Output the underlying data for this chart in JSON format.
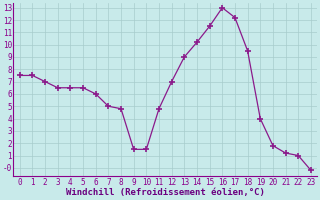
{
  "x": [
    0,
    1,
    2,
    3,
    4,
    5,
    6,
    7,
    8,
    9,
    10,
    11,
    12,
    13,
    14,
    15,
    16,
    17,
    18,
    19,
    20,
    21,
    22,
    23
  ],
  "y": [
    7.5,
    7.5,
    7.0,
    6.5,
    6.5,
    6.5,
    6.0,
    5.0,
    4.8,
    1.5,
    1.5,
    4.8,
    7.0,
    9.0,
    10.2,
    11.5,
    13.0,
    12.2,
    9.5,
    4.0,
    1.8,
    1.2,
    1.0,
    -0.2
  ],
  "line_color": "#8B1A8B",
  "marker": "+",
  "marker_color": "#8B1A8B",
  "bg_color": "#c8eaea",
  "grid_color": "#a8cccc",
  "axis_band_color": "#7B1AB0",
  "xlabel": "Windchill (Refroidissement éolien,°C)",
  "xlabel_color": "#6B0080",
  "xlabel_fontsize": 6.5,
  "tick_color": "#8B008B",
  "tick_fontsize": 5.5,
  "xlim": [
    -0.5,
    23.5
  ],
  "ylim": [
    -0.7,
    13.4
  ],
  "yticks": [
    0,
    1,
    2,
    3,
    4,
    5,
    6,
    7,
    8,
    9,
    10,
    11,
    12,
    13
  ],
  "ytick_labels": [
    "-0",
    "1",
    "2",
    "3",
    "4",
    "5",
    "6",
    "7",
    "8",
    "9",
    "10",
    "11",
    "12",
    "13"
  ],
  "xticks": [
    0,
    1,
    2,
    3,
    4,
    5,
    6,
    7,
    8,
    9,
    10,
    11,
    12,
    13,
    14,
    15,
    16,
    17,
    18,
    19,
    20,
    21,
    22,
    23
  ],
  "xtick_labels": [
    "0",
    "1",
    "2",
    "3",
    "4",
    "5",
    "6",
    "7",
    "8",
    "9",
    "10",
    "11",
    "12",
    "13",
    "14",
    "15",
    "16",
    "17",
    "18",
    "19",
    "20",
    "21",
    "22",
    "23"
  ]
}
